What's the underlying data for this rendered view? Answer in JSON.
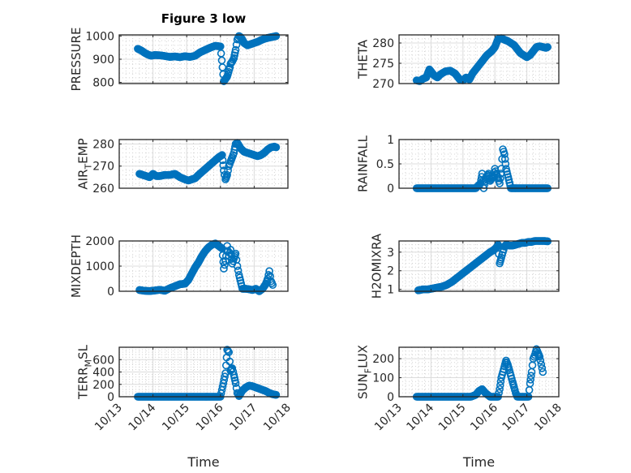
{
  "figure": {
    "title": "Figure 3 low",
    "marker_color": "#0072BD"
  },
  "chart_data": [
    {
      "type": "scatter",
      "id": "pressure",
      "ylabel": "PRESSURE",
      "xlabel": "",
      "ylim": [
        795,
        1005
      ],
      "yticks": [
        800,
        900,
        1000
      ],
      "ytick_labels": [
        "800",
        "900",
        "1000"
      ],
      "xlim": [
        0,
        5
      ],
      "xticks": [
        0,
        1,
        2,
        3,
        4,
        5
      ],
      "xtick_labels": [],
      "grid": true,
      "minor_grid": true,
      "title": "Figure 3 low",
      "x": [
        0.55,
        0.65,
        0.75,
        0.85,
        0.95,
        1.05,
        1.2,
        1.35,
        1.5,
        1.65,
        1.8,
        1.95,
        2.1,
        2.25,
        2.4,
        2.55,
        2.7,
        2.85,
        3.0,
        3.1,
        3.2,
        3.28,
        3.3,
        3.35,
        3.4,
        3.45,
        3.5,
        3.55,
        3.6,
        3.65,
        3.7,
        3.8,
        3.9,
        4.0,
        4.1,
        4.2,
        4.3,
        4.4,
        4.5,
        4.6,
        4.65
      ],
      "y": [
        945,
        938,
        928,
        920,
        915,
        918,
        917,
        914,
        910,
        912,
        909,
        913,
        910,
        915,
        930,
        940,
        950,
        958,
        955,
        805,
        825,
        865,
        880,
        890,
        905,
        940,
        985,
        1000,
        995,
        985,
        970,
        960,
        965,
        970,
        975,
        982,
        988,
        992,
        995,
        998,
        1000
      ]
    },
    {
      "type": "scatter",
      "id": "theta",
      "ylabel": "THETA",
      "xlabel": "",
      "ylim": [
        270,
        282
      ],
      "yticks": [
        270,
        275,
        280
      ],
      "ytick_labels": [
        "270",
        "275",
        "280"
      ],
      "xlim": [
        0,
        5
      ],
      "xticks": [
        0,
        1,
        2,
        3,
        4,
        5
      ],
      "xtick_labels": [],
      "grid": true,
      "minor_grid": true,
      "x": [
        0.55,
        0.65,
        0.75,
        0.85,
        0.95,
        1.0,
        1.1,
        1.2,
        1.3,
        1.45,
        1.6,
        1.75,
        1.9,
        2.0,
        2.1,
        2.2,
        2.3,
        2.45,
        2.6,
        2.75,
        2.9,
        3.0,
        3.1,
        3.2,
        3.3,
        3.4,
        3.5,
        3.6,
        3.7,
        3.8,
        3.9,
        4.0,
        4.1,
        4.2,
        4.3,
        4.4,
        4.5,
        4.6,
        4.65
      ],
      "y": [
        270.8,
        270.6,
        271.2,
        271.5,
        273.5,
        273.0,
        272.0,
        271.5,
        272.3,
        273.0,
        273.2,
        272.5,
        271.0,
        270.8,
        271.5,
        271.0,
        272.5,
        274.0,
        275.5,
        277.0,
        278.0,
        279.0,
        281.0,
        281.2,
        280.8,
        280.5,
        280.0,
        279.5,
        278.5,
        277.5,
        277.0,
        276.5,
        277.0,
        278.0,
        279.0,
        279.2,
        279.0,
        278.8,
        279.0
      ]
    },
    {
      "type": "scatter",
      "id": "air_temp",
      "ylabel": "AIR_TEMP",
      "ylabel_main": "AIR",
      "ylabel_sub": "T",
      "ylabel_rest": "EMP",
      "xlabel": "",
      "ylim": [
        260,
        282
      ],
      "yticks": [
        260,
        270,
        280
      ],
      "ytick_labels": [
        "260",
        "270",
        "280"
      ],
      "xlim": [
        0,
        5
      ],
      "xticks": [
        0,
        1,
        2,
        3,
        4,
        5
      ],
      "xtick_labels": [],
      "grid": true,
      "minor_grid": true,
      "x": [
        0.6,
        0.7,
        0.8,
        0.9,
        1.0,
        1.1,
        1.2,
        1.35,
        1.5,
        1.65,
        1.8,
        1.95,
        2.05,
        2.15,
        2.25,
        2.35,
        2.5,
        2.65,
        2.8,
        2.95,
        3.05,
        3.1,
        3.15,
        3.2,
        3.25,
        3.3,
        3.35,
        3.4,
        3.45,
        3.5,
        3.6,
        3.7,
        3.8,
        3.9,
        4.0,
        4.1,
        4.2,
        4.3,
        4.4,
        4.5,
        4.6,
        4.65
      ],
      "y": [
        266.5,
        266.0,
        265.5,
        265.0,
        266.5,
        265.5,
        265.5,
        266.0,
        266.0,
        266.5,
        265.0,
        264.0,
        263.5,
        264.0,
        264.5,
        266.0,
        268.0,
        270.0,
        272.0,
        274.0,
        275.0,
        268.0,
        264.0,
        266.0,
        270.0,
        272.0,
        274.0,
        276.0,
        280.0,
        280.5,
        278.0,
        276.5,
        276.0,
        275.5,
        275.0,
        274.5,
        275.0,
        276.0,
        277.5,
        278.5,
        278.8,
        278.5
      ]
    },
    {
      "type": "scatter",
      "id": "rainfall",
      "ylabel": "RAINFALL",
      "xlabel": "",
      "ylim": [
        0,
        1
      ],
      "yticks": [
        0,
        0.5,
        1
      ],
      "ytick_labels": [
        "0",
        "0.5",
        "1"
      ],
      "xlim": [
        0,
        5
      ],
      "xticks": [
        0,
        1,
        2,
        3,
        4,
        5
      ],
      "xtick_labels": [],
      "grid": true,
      "minor_grid": true,
      "x": [
        0.55,
        0.8,
        1.0,
        1.2,
        1.4,
        1.6,
        1.8,
        2.0,
        2.2,
        2.4,
        2.55,
        2.6,
        2.65,
        2.7,
        2.75,
        2.8,
        2.85,
        2.9,
        2.95,
        3.0,
        3.05,
        3.1,
        3.15,
        3.2,
        3.25,
        3.3,
        3.35,
        3.5,
        3.7,
        3.9,
        4.1,
        4.3,
        4.5,
        4.65
      ],
      "y": [
        0,
        0,
        0,
        0,
        0,
        0,
        0,
        0,
        0,
        0,
        0.1,
        0.3,
        0.0,
        0.2,
        0.25,
        0.3,
        0.15,
        0.2,
        0.25,
        0.4,
        0.3,
        0.2,
        0.1,
        0.4,
        0.8,
        0.7,
        0.4,
        0,
        0,
        0,
        0,
        0,
        0,
        0
      ]
    },
    {
      "type": "scatter",
      "id": "mixdepth",
      "ylabel": "MIXDEPTH",
      "xlabel": "",
      "ylim": [
        0,
        2000
      ],
      "yticks": [
        0,
        1000,
        2000
      ],
      "ytick_labels": [
        "0",
        "1000",
        "2000"
      ],
      "xlim": [
        0,
        5
      ],
      "xticks": [
        0,
        1,
        2,
        3,
        4,
        5
      ],
      "xtick_labels": [],
      "grid": true,
      "minor_grid": true,
      "x": [
        0.6,
        0.75,
        0.9,
        1.05,
        1.2,
        1.35,
        1.5,
        1.65,
        1.8,
        1.95,
        2.05,
        2.15,
        2.25,
        2.35,
        2.45,
        2.55,
        2.65,
        2.75,
        2.85,
        2.95,
        3.05,
        3.1,
        3.15,
        3.2,
        3.25,
        3.3,
        3.35,
        3.4,
        3.45,
        3.5,
        3.55,
        3.65,
        3.75,
        3.85,
        3.95,
        4.05,
        4.15,
        4.25,
        4.35,
        4.4,
        4.45,
        4.5,
        4.55
      ],
      "y": [
        50,
        20,
        10,
        30,
        60,
        20,
        120,
        200,
        280,
        300,
        450,
        700,
        950,
        1150,
        1400,
        1600,
        1750,
        1850,
        1900,
        1800,
        1700,
        900,
        1200,
        1800,
        1400,
        1650,
        1100,
        1300,
        1500,
        1000,
        650,
        100,
        100,
        80,
        50,
        100,
        0,
        100,
        300,
        500,
        800,
        400,
        250
      ]
    },
    {
      "type": "scatter",
      "id": "h2omixra",
      "ylabel": "H2OMIXRA",
      "xlabel": "",
      "ylim": [
        0.9,
        3.6
      ],
      "yticks": [
        1,
        2,
        3
      ],
      "ytick_labels": [
        "1",
        "2",
        "3"
      ],
      "xlim": [
        0,
        5
      ],
      "xticks": [
        0,
        1,
        2,
        3,
        4,
        5
      ],
      "xtick_labels": [],
      "grid": true,
      "minor_grid": true,
      "x": [
        0.6,
        0.75,
        0.9,
        1.05,
        1.2,
        1.35,
        1.5,
        1.65,
        1.8,
        1.95,
        2.1,
        2.25,
        2.4,
        2.55,
        2.7,
        2.85,
        2.95,
        3.05,
        3.1,
        3.15,
        3.2,
        3.25,
        3.3,
        3.35,
        3.45,
        3.55,
        3.65,
        3.75,
        3.85,
        3.95,
        4.05,
        4.15,
        4.25,
        4.35,
        4.45,
        4.55,
        4.65
      ],
      "y": [
        0.95,
        1.0,
        1.0,
        1.05,
        1.1,
        1.15,
        1.25,
        1.4,
        1.6,
        1.8,
        2.0,
        2.2,
        2.4,
        2.6,
        2.8,
        3.0,
        3.1,
        3.25,
        3.4,
        2.4,
        2.7,
        3.0,
        3.3,
        3.4,
        3.35,
        3.35,
        3.4,
        3.45,
        3.5,
        3.5,
        3.55,
        3.55,
        3.6,
        3.6,
        3.6,
        3.6,
        3.58
      ]
    },
    {
      "type": "scatter",
      "id": "terr_msl",
      "ylabel": "TERR_MSL",
      "ylabel_main": "TERR",
      "ylabel_sub": "M",
      "ylabel_rest": "SL",
      "xlabel": "Time",
      "ylim": [
        0,
        800
      ],
      "yticks": [
        0,
        200,
        400,
        600
      ],
      "ytick_labels": [
        "0",
        "200",
        "400",
        "600"
      ],
      "xlim": [
        0,
        5
      ],
      "xticks": [
        0,
        1,
        2,
        3,
        4,
        5
      ],
      "xtick_labels": [
        "10/13",
        "10/14",
        "10/15",
        "10/16",
        "10/17",
        "10/18"
      ],
      "grid": true,
      "minor_grid": true,
      "x": [
        0.55,
        0.8,
        1.05,
        1.3,
        1.55,
        1.8,
        2.05,
        2.3,
        2.55,
        2.8,
        3.0,
        3.15,
        3.2,
        3.25,
        3.3,
        3.35,
        3.4,
        3.45,
        3.5,
        3.55,
        3.65,
        3.75,
        3.85,
        3.95,
        4.05,
        4.15,
        4.25,
        4.35,
        4.45,
        4.55,
        4.65
      ],
      "y": [
        0,
        0,
        0,
        0,
        0,
        0,
        0,
        0,
        0,
        0,
        0,
        380,
        760,
        720,
        420,
        460,
        350,
        220,
        60,
        10,
        100,
        150,
        180,
        170,
        150,
        130,
        110,
        90,
        60,
        40,
        30
      ]
    },
    {
      "type": "scatter",
      "id": "sun_flux",
      "ylabel": "SUN_FLUX",
      "ylabel_main": "SUN",
      "ylabel_sub": "F",
      "ylabel_rest": "LUX",
      "xlabel": "Time",
      "ylim": [
        0,
        260
      ],
      "yticks": [
        0,
        100,
        200
      ],
      "ytick_labels": [
        "0",
        "100",
        "200"
      ],
      "xlim": [
        0,
        5
      ],
      "xticks": [
        0,
        1,
        2,
        3,
        4,
        5
      ],
      "xtick_labels": [
        "10/13",
        "10/14",
        "10/15",
        "10/16",
        "10/17",
        "10/18"
      ],
      "grid": true,
      "minor_grid": true,
      "x": [
        0.55,
        0.8,
        1.05,
        1.3,
        1.55,
        1.8,
        2.05,
        2.25,
        2.4,
        2.5,
        2.6,
        2.7,
        2.85,
        3.0,
        3.1,
        3.15,
        3.2,
        3.25,
        3.3,
        3.35,
        3.4,
        3.45,
        3.5,
        3.55,
        3.6,
        3.65,
        3.7,
        3.75,
        3.85,
        3.95,
        4.05,
        4.1,
        4.15,
        4.2,
        4.25,
        4.3,
        4.35,
        4.4,
        4.45,
        4.5
      ],
      "y": [
        0,
        0,
        0,
        0,
        0,
        0,
        0,
        0,
        10,
        30,
        40,
        20,
        0,
        0,
        0,
        40,
        100,
        130,
        160,
        190,
        170,
        140,
        110,
        80,
        50,
        20,
        0,
        0,
        0,
        0,
        0,
        70,
        130,
        200,
        220,
        250,
        230,
        210,
        170,
        130
      ]
    }
  ]
}
